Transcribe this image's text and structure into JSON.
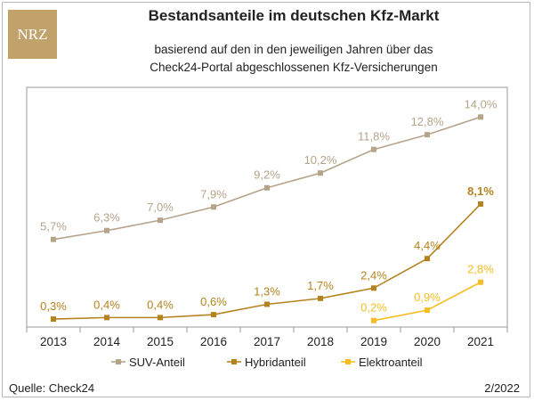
{
  "logo": {
    "text": "NRZ"
  },
  "chart_data": {
    "type": "line",
    "title": "Bestandsanteile im deutschen Kfz-Markt",
    "subtitle": [
      "basierend auf den in den jeweiligen Jahren über das",
      "Check24-Portal abgeschlossenen Kfz-Versicherungen"
    ],
    "categories": [
      "2013",
      "2014",
      "2015",
      "2016",
      "2017",
      "2018",
      "2019",
      "2020",
      "2021"
    ],
    "ylim": [
      0,
      16
    ],
    "grid": false,
    "legend": "bottom",
    "series": [
      {
        "name": "SUV-Anteil",
        "color": "#b5a48a",
        "values": [
          5.7,
          6.3,
          7.0,
          7.9,
          9.2,
          10.2,
          11.8,
          12.8,
          14.0
        ],
        "labels": [
          "5,7%",
          "6,3%",
          "7,0%",
          "7,9%",
          "9,2%",
          "10,2%",
          "11,8%",
          "12,8%",
          "14,0%"
        ]
      },
      {
        "name": "Hybridanteil",
        "color": "#b5831e",
        "values": [
          0.3,
          0.4,
          0.4,
          0.6,
          1.3,
          1.7,
          2.4,
          4.4,
          8.1
        ],
        "labels": [
          "0,3%",
          "0,4%",
          "0,4%",
          "0,6%",
          "1,3%",
          "1,7%",
          "2,4%",
          "4,4%",
          "8,1%"
        ]
      },
      {
        "name": "Elektroanteil",
        "color": "#f5bd1f",
        "x": [
          "2019",
          "2020",
          "2021"
        ],
        "values": [
          0.2,
          0.9,
          2.8
        ],
        "labels": [
          "0,2%",
          "0,9%",
          "2,8%"
        ]
      }
    ]
  },
  "footer": {
    "source": "Quelle: Check24",
    "date": "2/2022"
  }
}
